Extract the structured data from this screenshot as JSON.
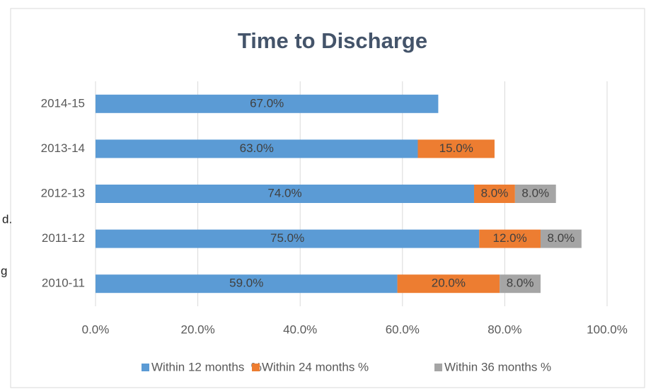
{
  "chart_data": {
    "type": "stacked-barh",
    "title": "Time to Discharge",
    "categories": [
      "2014-15",
      "2013-14",
      "2012-13",
      "2011-12",
      "2010-11"
    ],
    "series": [
      {
        "name": "Within 12 months  %",
        "color": "#5b9bd5",
        "values": [
          67,
          63,
          74,
          75,
          59
        ],
        "value_labels": [
          "67.0%",
          "63.0%",
          "74.0%",
          "75.0%",
          "59.0%"
        ]
      },
      {
        "name": "Within 24 months %",
        "color": "#ed7d31",
        "values": [
          null,
          15,
          8,
          12,
          20
        ],
        "value_labels": [
          null,
          "15.0%",
          "8.0%",
          "12.0%",
          "20.0%"
        ]
      },
      {
        "name": "Within 36 months %",
        "color": "#a5a5a5",
        "values": [
          null,
          null,
          8,
          8,
          8
        ],
        "value_labels": [
          null,
          null,
          "8.0%",
          "8.0%",
          "8.0%"
        ]
      }
    ],
    "xlim": [
      0,
      100
    ],
    "xticks": [
      {
        "value": 0,
        "label": "0.0%"
      },
      {
        "value": 20,
        "label": "20.0%"
      },
      {
        "value": 40,
        "label": "40.0%"
      },
      {
        "value": 60,
        "label": "60.0%"
      },
      {
        "value": 80,
        "label": "80.0%"
      },
      {
        "value": 100,
        "label": "100.0%"
      }
    ],
    "grid": true,
    "legend": "bottom"
  },
  "background_text": [
    "d.",
    "g"
  ]
}
